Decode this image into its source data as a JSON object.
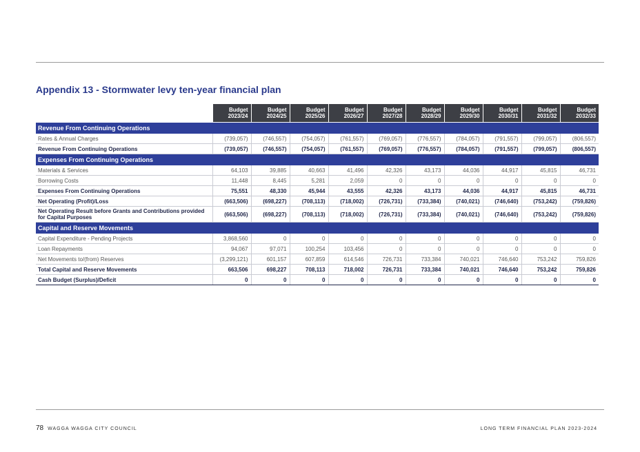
{
  "title": "Appendix 13 - Stormwater levy ten-year financial plan",
  "columns": [
    [
      "Budget",
      "2023/24"
    ],
    [
      "Budget",
      "2024/25"
    ],
    [
      "Budget",
      "2025/26"
    ],
    [
      "Budget",
      "2026/27"
    ],
    [
      "Budget",
      "2027/28"
    ],
    [
      "Budget",
      "2028/29"
    ],
    [
      "Budget",
      "2029/30"
    ],
    [
      "Budget",
      "2030/31"
    ],
    [
      "Budget",
      "2031/32"
    ],
    [
      "Budget",
      "2032/33"
    ]
  ],
  "sections": [
    {
      "heading": "Revenue From Continuing Operations",
      "rows": [
        {
          "label": "Rates & Annual Charges",
          "bold": false,
          "values": [
            "(739,057)",
            "(746,557)",
            "(754,057)",
            "(761,557)",
            "(769,057)",
            "(776,557)",
            "(784,057)",
            "(791,557)",
            "(799,057)",
            "(806,557)"
          ]
        },
        {
          "label": "Revenue From Continuing Operations",
          "bold": true,
          "values": [
            "(739,057)",
            "(746,557)",
            "(754,057)",
            "(761,557)",
            "(769,057)",
            "(776,557)",
            "(784,057)",
            "(791,557)",
            "(799,057)",
            "(806,557)"
          ]
        }
      ]
    },
    {
      "heading": "Expenses From Continuing Operations",
      "rows": [
        {
          "label": "Materials & Services",
          "bold": false,
          "values": [
            "64,103",
            "39,885",
            "40,663",
            "41,496",
            "42,326",
            "43,173",
            "44,036",
            "44,917",
            "45,815",
            "46,731"
          ]
        },
        {
          "label": "Borrowing Costs",
          "bold": false,
          "values": [
            "11,448",
            "8,445",
            "5,281",
            "2,059",
            "0",
            "0",
            "0",
            "0",
            "0",
            "0"
          ]
        },
        {
          "label": "Expenses From Continuing Operations",
          "bold": true,
          "values": [
            "75,551",
            "48,330",
            "45,944",
            "43,555",
            "42,326",
            "43,173",
            "44,036",
            "44,917",
            "45,815",
            "46,731"
          ]
        },
        {
          "label": "Net Operating (Profit)/Loss",
          "bold": true,
          "values": [
            "(663,506)",
            "(698,227)",
            "(708,113)",
            "(718,002)",
            "(726,731)",
            "(733,384)",
            "(740,021)",
            "(746,640)",
            "(753,242)",
            "(759,826)"
          ]
        },
        {
          "label": "Net Operating Result before Grants and Contributions provided for Capital Purposes",
          "bold": true,
          "tall": true,
          "values": [
            "(663,506)",
            "(698,227)",
            "(708,113)",
            "(718,002)",
            "(726,731)",
            "(733,384)",
            "(740,021)",
            "(746,640)",
            "(753,242)",
            "(759,826)"
          ]
        }
      ]
    },
    {
      "heading": "Capital and Reserve Movements",
      "rows": [
        {
          "label": "Capital Expenditure - Pending Projects",
          "bold": false,
          "values": [
            "3,868,560",
            "0",
            "0",
            "0",
            "0",
            "0",
            "0",
            "0",
            "0",
            "0"
          ]
        },
        {
          "label": "Loan Repayments",
          "bold": false,
          "values": [
            "94,067",
            "97,071",
            "100,254",
            "103,456",
            "0",
            "0",
            "0",
            "0",
            "0",
            "0"
          ]
        },
        {
          "label": "Net Movements to/(from) Reserves",
          "bold": false,
          "values": [
            "(3,299,121)",
            "601,157",
            "607,859",
            "614,546",
            "726,731",
            "733,384",
            "740,021",
            "746,640",
            "753,242",
            "759,826"
          ]
        },
        {
          "label": "Total Capital and Reserve Movements",
          "bold": true,
          "values": [
            "663,506",
            "698,227",
            "708,113",
            "718,002",
            "726,731",
            "733,384",
            "740,021",
            "746,640",
            "753,242",
            "759,826"
          ]
        },
        {
          "label": "Cash Budget (Surplus)/Deficit",
          "bold": true,
          "last": true,
          "values": [
            "0",
            "0",
            "0",
            "0",
            "0",
            "0",
            "0",
            "0",
            "0",
            "0"
          ]
        }
      ]
    }
  ],
  "footer": {
    "page_number": "78",
    "left": "WAGGA WAGGA CITY COUNCIL",
    "right": "LONG TERM FINANCIAL PLAN 2023-2024"
  }
}
